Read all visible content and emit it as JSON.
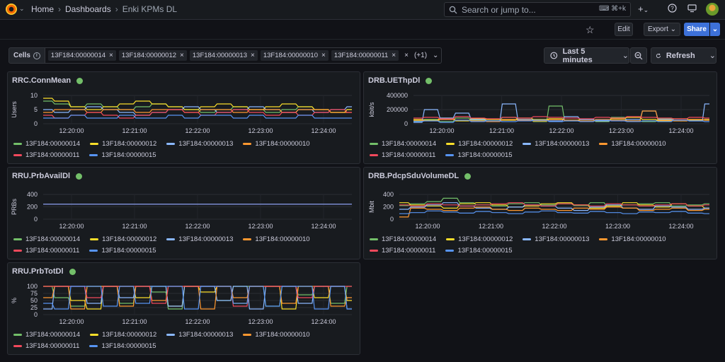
{
  "header": {
    "breadcrumbs": [
      "Home",
      "Dashboards",
      "Enki KPMs DL"
    ],
    "search_placeholder": "Search or jump to...",
    "search_shortcut": "⌘+k"
  },
  "toolbar": {
    "edit": "Edit",
    "export": "Export",
    "share": "Share"
  },
  "variables": {
    "label": "Cells",
    "chips": [
      "13F184:00000014",
      "13F184:00000012",
      "13F184:00000013",
      "13F184:00000010",
      "13F184:00000011"
    ],
    "more": "(+1)"
  },
  "time": {
    "range": "Last 5 minutes",
    "refresh": "Refresh"
  },
  "colors": {
    "13F184:00000014": "#73bf69",
    "13F184:00000012": "#fade2a",
    "13F184:00000013": "#8ab8ff",
    "13F184:00000010": "#ff9830",
    "13F184:00000011": "#f2495c",
    "13F184:00000015": "#5794f2"
  },
  "legend": [
    "13F184:00000014",
    "13F184:00000012",
    "13F184:00000013",
    "13F184:00000010",
    "13F184:00000011",
    "13F184:00000015"
  ],
  "panels": [
    {
      "title": "RRC.ConnMean",
      "chart_data": {
        "type": "line",
        "ylabel": "Users",
        "yticks": [
          "10",
          "5",
          "0"
        ],
        "ylim": [
          0,
          10
        ],
        "xticks": [
          "12:20:00",
          "12:21:00",
          "12:22:00",
          "12:23:00",
          "12:24:00"
        ],
        "series": [
          {
            "name": "13F184:00000014",
            "values": [
              8,
              7,
              6,
              7,
              6,
              5,
              6,
              7,
              6,
              5,
              4,
              5,
              6,
              5,
              4,
              5,
              6,
              5,
              4,
              5
            ]
          },
          {
            "name": "13F184:00000012",
            "values": [
              9,
              8,
              6,
              5,
              6,
              7,
              8,
              7,
              6,
              5,
              6,
              7,
              6,
              5,
              6,
              7,
              6,
              5,
              4,
              5
            ]
          },
          {
            "name": "13F184:00000013",
            "values": [
              5,
              4,
              5,
              6,
              5,
              4,
              3,
              4,
              5,
              6,
              5,
              4,
              5,
              6,
              5,
              4,
              5,
              4,
              5,
              6
            ]
          },
          {
            "name": "13F184:00000010",
            "values": [
              4,
              5,
              5,
              4,
              5,
              5,
              4,
              5,
              5,
              4,
              5,
              5,
              4,
              5,
              5,
              4,
              5,
              5,
              4,
              4
            ]
          },
          {
            "name": "13F184:00000011",
            "values": [
              3,
              2,
              3,
              4,
              3,
              2,
              3,
              4,
              5,
              4,
              3,
              4,
              5,
              4,
              3,
              4,
              3,
              4,
              5,
              4
            ]
          },
          {
            "name": "13F184:00000015",
            "values": [
              2,
              2,
              3,
              2,
              2,
              3,
              2,
              2,
              3,
              2,
              3,
              3,
              2,
              3,
              2,
              2,
              3,
              2,
              2,
              2
            ]
          }
        ]
      }
    },
    {
      "title": "DRB.UEThpDl",
      "chart_data": {
        "type": "line",
        "ylabel": "kbit/s",
        "yticks": [
          "400000",
          "200000",
          "0"
        ],
        "ylim": [
          0,
          400000
        ],
        "xticks": [
          "12:20:00",
          "12:21:00",
          "12:22:00",
          "12:23:00",
          "12:24:00"
        ],
        "series": [
          {
            "name": "13F184:00000014",
            "values": [
              40000,
              60000,
              30000,
              80000,
              50000,
              40000,
              90000,
              60000,
              30000,
              250000,
              40000,
              60000,
              30000,
              90000,
              40000,
              30000,
              70000,
              40000,
              60000,
              50000
            ]
          },
          {
            "name": "13F184:00000012",
            "values": [
              60000,
              50000,
              80000,
              40000,
              70000,
              60000,
              50000,
              80000,
              60000,
              70000,
              50000,
              60000,
              40000,
              70000,
              90000,
              60000,
              40000,
              70000,
              50000,
              60000
            ]
          },
          {
            "name": "13F184:00000013",
            "values": [
              20000,
              200000,
              80000,
              150000,
              60000,
              40000,
              280000,
              60000,
              50000,
              40000,
              100000,
              60000,
              40000,
              50000,
              60000,
              180000,
              60000,
              50000,
              40000,
              280000
            ]
          },
          {
            "name": "13F184:00000010",
            "values": [
              50000,
              40000,
              60000,
              50000,
              40000,
              30000,
              60000,
              50000,
              40000,
              60000,
              50000,
              40000,
              60000,
              50000,
              40000,
              180000,
              50000,
              40000,
              60000,
              50000
            ]
          },
          {
            "name": "13F184:00000011",
            "values": [
              80000,
              90000,
              70000,
              100000,
              80000,
              70000,
              90000,
              80000,
              100000,
              90000,
              80000,
              70000,
              90000,
              80000,
              100000,
              90000,
              80000,
              70000,
              90000,
              80000
            ]
          },
          {
            "name": "13F184:00000015",
            "values": [
              30000,
              40000,
              20000,
              50000,
              30000,
              40000,
              30000,
              40000,
              50000,
              30000,
              40000,
              30000,
              50000,
              40000,
              30000,
              40000,
              30000,
              50000,
              40000,
              30000
            ]
          }
        ]
      }
    },
    {
      "title": "RRU.PrbAvailDl",
      "chart_data": {
        "type": "line",
        "ylabel": "PRBs",
        "yticks": [
          "400",
          "200",
          "0"
        ],
        "ylim": [
          0,
          450
        ],
        "xticks": [
          "12:20:00",
          "12:21:00",
          "12:22:00",
          "12:23:00",
          "12:24:00"
        ],
        "series": [
          {
            "name": "13F184:00000014",
            "values": [
              273,
              273,
              273,
              273,
              273,
              273,
              273,
              273,
              273,
              273
            ]
          },
          {
            "name": "13F184:00000012",
            "values": [
              273,
              273,
              273,
              273,
              273,
              273,
              273,
              273,
              273,
              273
            ]
          },
          {
            "name": "13F184:00000013",
            "values": [
              273,
              273,
              273,
              273,
              273,
              273,
              273,
              273,
              273,
              273
            ]
          },
          {
            "name": "13F184:00000010",
            "values": [
              273,
              273,
              273,
              273,
              273,
              273,
              273,
              273,
              273,
              273
            ]
          },
          {
            "name": "13F184:00000011",
            "values": [
              273,
              273,
              273,
              273,
              273,
              273,
              273,
              273,
              273,
              273
            ]
          },
          {
            "name": "13F184:00000015",
            "values": [
              273,
              273,
              273,
              273,
              273,
              273,
              273,
              273,
              273,
              273
            ]
          }
        ]
      }
    },
    {
      "title": "DRB.PdcpSduVolumeDL",
      "chart_data": {
        "type": "line",
        "ylabel": "Mbit",
        "yticks": [
          "400",
          "200",
          "0"
        ],
        "ylim": [
          0,
          450
        ],
        "xticks": [
          "12:20:00",
          "12:21:00",
          "12:22:00",
          "12:23:00",
          "12:24:00"
        ],
        "series": [
          {
            "name": "13F184:00000014",
            "values": [
              250,
              280,
              320,
              380,
              300,
              260,
              240,
              280,
              300,
              260,
              280,
              250,
              300,
              240,
              260,
              280,
              300,
              240,
              260,
              280
            ]
          },
          {
            "name": "13F184:00000012",
            "values": [
              300,
              260,
              240,
              200,
              280,
              300,
              260,
              220,
              240,
              280,
              300,
              260,
              200,
              240,
              300,
              260,
              220,
              280,
              240,
              200
            ]
          },
          {
            "name": "13F184:00000013",
            "values": [
              180,
              220,
              260,
              300,
              240,
              200,
              180,
              220,
              260,
              240,
              200,
              160,
              220,
              260,
              200,
              180,
              240,
              220,
              180,
              200
            ]
          },
          {
            "name": "13F184:00000010",
            "values": [
              40,
              200,
              180,
              160,
              200,
              220,
              180,
              160,
              200,
              180,
              160,
              200,
              180,
              220,
              200,
              160,
              180,
              200,
              160,
              180
            ]
          },
          {
            "name": "13F184:00000011",
            "values": [
              260,
              240,
              280,
              260,
              240,
              260,
              280,
              300,
              260,
              240,
              280,
              260,
              240,
              280,
              260,
              240,
              260,
              280,
              240,
              260
            ]
          },
          {
            "name": "13F184:00000015",
            "values": [
              100,
              120,
              150,
              130,
              110,
              140,
              120,
              100,
              130,
              150,
              120,
              110,
              140,
              120,
              100,
              130,
              120,
              140,
              110,
              100
            ]
          }
        ]
      }
    },
    {
      "title": "RRU.PrbTotDl",
      "chart_data": {
        "type": "line",
        "ylabel": "%",
        "yticks": [
          "100",
          "75",
          "50",
          "25",
          "0"
        ],
        "ylim": [
          0,
          100
        ],
        "xticks": [
          "12:20:00",
          "12:21:00",
          "12:22:00",
          "12:23:00",
          "12:24:00"
        ],
        "series": [
          {
            "name": "13F184:00000014",
            "values": [
              100,
              60,
              30,
              100,
              100,
              40,
              100,
              80,
              20,
              100,
              100,
              50,
              100,
              100,
              30,
              100,
              70,
              100,
              40,
              100
            ]
          },
          {
            "name": "13F184:00000012",
            "values": [
              100,
              100,
              50,
              20,
              100,
              100,
              60,
              100,
              30,
              100,
              80,
              100,
              40,
              100,
              100,
              20,
              100,
              60,
              100,
              50
            ]
          },
          {
            "name": "13F184:00000013",
            "values": [
              20,
              100,
              100,
              40,
              100,
              60,
              100,
              100,
              30,
              100,
              100,
              50,
              100,
              20,
              100,
              100,
              40,
              100,
              100,
              20
            ]
          },
          {
            "name": "13F184:00000010",
            "values": [
              60,
              100,
              20,
              100,
              100,
              30,
              100,
              50,
              100,
              100,
              20,
              100,
              60,
              100,
              100,
              40,
              100,
              100,
              30,
              60
            ]
          },
          {
            "name": "13F184:00000011",
            "values": [
              100,
              100,
              100,
              60,
              100,
              100,
              100,
              40,
              100,
              100,
              100,
              100,
              30,
              100,
              100,
              100,
              60,
              100,
              100,
              100
            ]
          },
          {
            "name": "13F184:00000015",
            "values": [
              40,
              20,
              100,
              100,
              30,
              100,
              40,
              100,
              100,
              20,
              100,
              100,
              40,
              100,
              30,
              100,
              100,
              20,
              100,
              20
            ]
          }
        ]
      }
    }
  ]
}
